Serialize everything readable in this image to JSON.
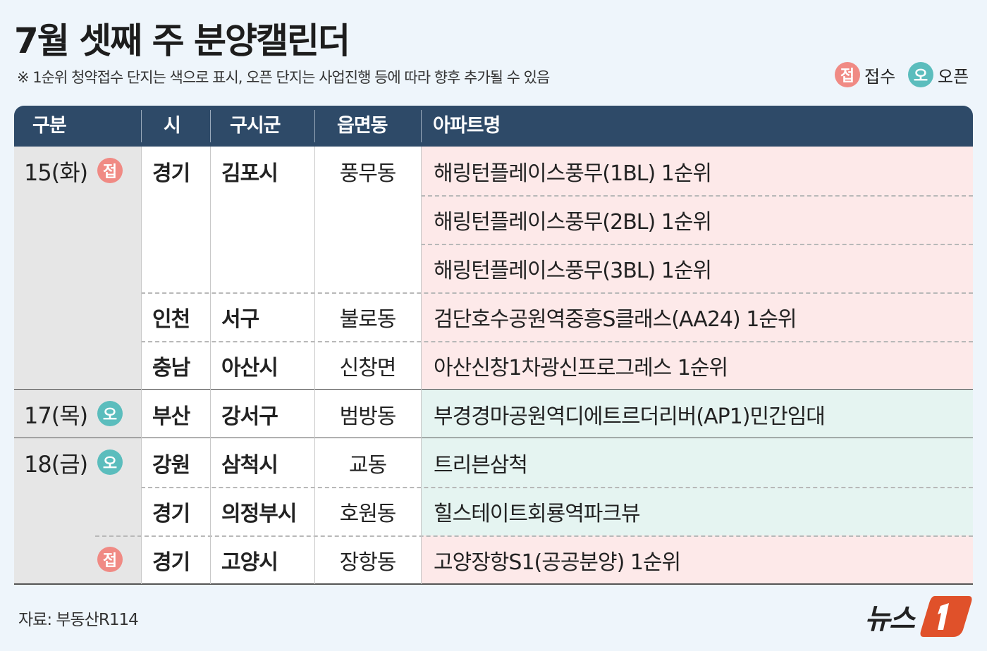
{
  "title": "7월 셋째 주 분양캘린더",
  "note": "※ 1순위 청약접수 단지는 색으로  표시, 오픈 단지는 사업진행 등에 따라 향후 추가될 수 있음",
  "legend": [
    {
      "badge": "접",
      "label": "접수",
      "color": "#f08a84"
    },
    {
      "badge": "오",
      "label": "오픈",
      "color": "#5bbdbd"
    }
  ],
  "colors": {
    "header": "#2e4a68",
    "reception_bg": "#fde9e9",
    "open_bg": "#e5f4f1",
    "date_bg": "#e6e6e6"
  },
  "headers": [
    "구분",
    "시",
    "구시군",
    "읍면동",
    "아파트명"
  ],
  "groups": [
    {
      "date": "15(화)",
      "entries": [
        {
          "type": "접",
          "city": "경기",
          "district": "김포시",
          "town": "풍무동",
          "apartments": [
            "해링턴플레이스풍무(1BL) 1순위",
            "해링턴플레이스풍무(2BL) 1순위",
            "해링턴플레이스풍무(3BL) 1순위"
          ]
        },
        {
          "type": "접",
          "city": "인천",
          "district": "서구",
          "town": "불로동",
          "apartments": [
            "검단호수공원역중흥S클래스(AA24) 1순위"
          ]
        },
        {
          "type": "접",
          "city": "충남",
          "district": "아산시",
          "town": "신창면",
          "apartments": [
            "아산신창1차광신프로그레스 1순위"
          ]
        }
      ]
    },
    {
      "date": "17(목)",
      "entries": [
        {
          "type": "오",
          "city": "부산",
          "district": "강서구",
          "town": "범방동",
          "apartments": [
            "부경경마공원역디에트르더리버(AP1)민간임대"
          ]
        }
      ]
    },
    {
      "date": "18(금)",
      "entries": [
        {
          "type": "오",
          "city": "강원",
          "district": "삼척시",
          "town": "교동",
          "apartments": [
            "트리븐삼척"
          ]
        },
        {
          "type": "오",
          "city": "경기",
          "district": "의정부시",
          "town": "호원동",
          "apartments": [
            "힐스테이트회룡역파크뷰"
          ]
        },
        {
          "type": "접",
          "city": "경기",
          "district": "고양시",
          "town": "장항동",
          "apartments": [
            "고양장항S1(공공분양) 1순위"
          ]
        }
      ]
    }
  ],
  "source": "자료: 부동산R114",
  "logo": "뉴스1"
}
